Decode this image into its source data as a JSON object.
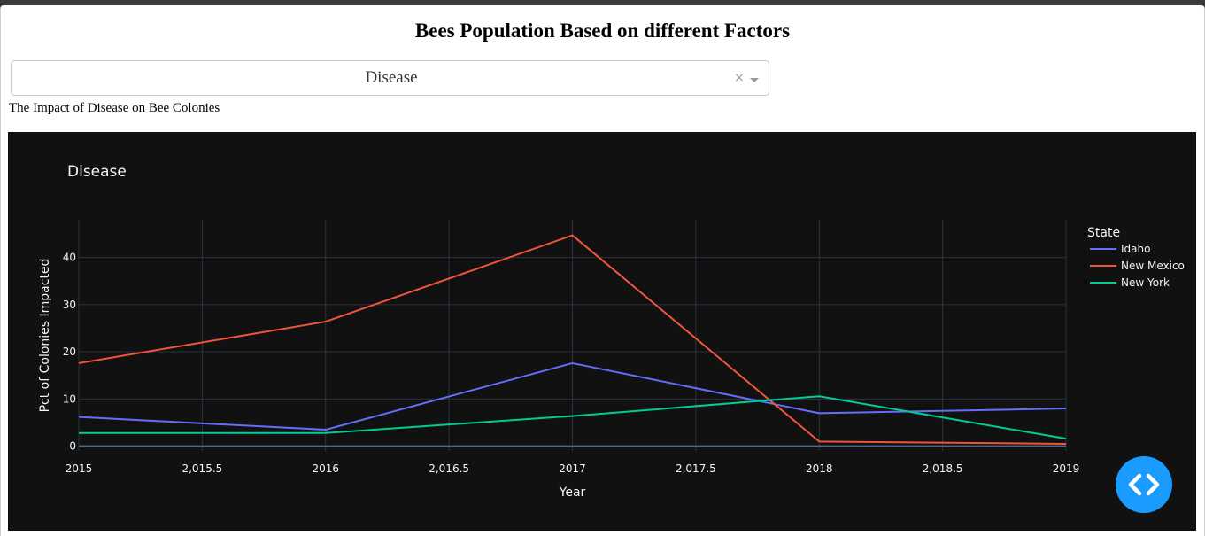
{
  "page": {
    "title": "Bees Population Based on different Factors",
    "subtitle": "The Impact of Disease on Bee Colonies"
  },
  "dropdown": {
    "selected": "Disease",
    "clear_symbol": "×"
  },
  "fab": {
    "icon": "code-icon",
    "color": "#1a9bff"
  },
  "chart_data": {
    "type": "line",
    "title": "Disease",
    "xlabel": "Year",
    "ylabel": "Pct of Colonies Impacted",
    "legend_title": "State",
    "legend_position": "top-right",
    "theme": "dark",
    "grid": true,
    "xlim": [
      2015,
      2019
    ],
    "ylim": [
      -1,
      48
    ],
    "xticks": [
      2015,
      2015.5,
      2016,
      2016.5,
      2017,
      2017.5,
      2018,
      2018.5,
      2019
    ],
    "xtick_labels": [
      "2015",
      "2,015.5",
      "2016",
      "2,016.5",
      "2017",
      "2,017.5",
      "2018",
      "2,018.5",
      "2019"
    ],
    "yticks": [
      0,
      10,
      20,
      30,
      40
    ],
    "ytick_labels": [
      "0",
      "10",
      "20",
      "30",
      "40"
    ],
    "x": [
      2015,
      2016,
      2017,
      2018,
      2019
    ],
    "series": [
      {
        "name": "Idaho",
        "color": "#636efa",
        "values": [
          6.2,
          3.5,
          17.6,
          7.0,
          8.0
        ]
      },
      {
        "name": "New Mexico",
        "color": "#ef553b",
        "values": [
          17.6,
          26.4,
          44.7,
          1.0,
          0.5
        ]
      },
      {
        "name": "New York",
        "color": "#00cc96",
        "values": [
          2.8,
          2.8,
          6.4,
          10.6,
          1.6
        ]
      }
    ]
  }
}
